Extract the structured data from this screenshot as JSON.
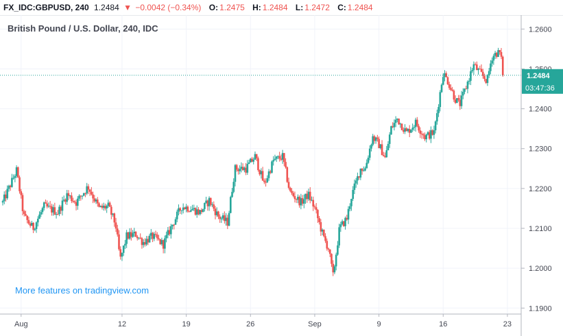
{
  "header": {
    "symbol": "FX_IDC:GBPUSD, 240",
    "last": "1.2484",
    "change": "−0.0042 (−0.34%)",
    "open_label": "O:",
    "open": "1.2475",
    "high_label": "H:",
    "high": "1.2484",
    "low_label": "L:",
    "low": "1.2472",
    "close_label": "C:",
    "close": "1.2484",
    "change_arrow": "triangle-down-icon"
  },
  "subtitle": "British Pound / U.S. Dollar, 240, IDC",
  "promo": "More features on tradingview.com",
  "price_tag": {
    "price": "1.2484",
    "countdown": "03:47:36"
  },
  "colors": {
    "up": "#26a69a",
    "down": "#ef5350",
    "grid": "#f0f3fa",
    "axis_text": "#434651",
    "price_line": "#26a69a",
    "promo": "#2196f3"
  },
  "chart_data": {
    "type": "candlestick",
    "title": "British Pound / U.S. Dollar, 240, IDC",
    "ylim": [
      1.1885,
      1.2635
    ],
    "y_ticks": [
      "1.2600",
      "1.2500",
      "1.2400",
      "1.2300",
      "1.2200",
      "1.2100",
      "1.2000",
      "1.1900"
    ],
    "x_ticks": [
      "Aug",
      "12",
      "19",
      "26",
      "Sep",
      "9",
      "16",
      "23"
    ],
    "x_tick_days": [
      1,
      12,
      19,
      26,
      33,
      40,
      47,
      54
    ],
    "x_range_days": [
      -1.3,
      55.5
    ],
    "current_price": 1.2484,
    "grid": true,
    "legend": "none",
    "anchors": [
      [
        -1.0,
        1.2165
      ],
      [
        0.5,
        1.2245
      ],
      [
        1.3,
        1.213
      ],
      [
        2.3,
        1.21
      ],
      [
        3.5,
        1.2155
      ],
      [
        5.0,
        1.214
      ],
      [
        6.0,
        1.2185
      ],
      [
        7.0,
        1.2165
      ],
      [
        8.3,
        1.2205
      ],
      [
        9.5,
        1.215
      ],
      [
        10.5,
        1.2155
      ],
      [
        11.3,
        1.211
      ],
      [
        11.8,
        1.202
      ],
      [
        12.5,
        1.208
      ],
      [
        13.5,
        1.2085
      ],
      [
        14.3,
        1.2065
      ],
      [
        15.3,
        1.208
      ],
      [
        16.5,
        1.206
      ],
      [
        17.5,
        1.211
      ],
      [
        18.5,
        1.2155
      ],
      [
        19.5,
        1.215
      ],
      [
        20.5,
        1.214
      ],
      [
        21.5,
        1.217
      ],
      [
        22.5,
        1.213
      ],
      [
        23.5,
        1.2115
      ],
      [
        24.3,
        1.225
      ],
      [
        25.5,
        1.225
      ],
      [
        26.5,
        1.228
      ],
      [
        27.5,
        1.221
      ],
      [
        28.5,
        1.227
      ],
      [
        29.5,
        1.228
      ],
      [
        30.3,
        1.219
      ],
      [
        31.5,
        1.2165
      ],
      [
        32.3,
        1.2185
      ],
      [
        33.0,
        1.215
      ],
      [
        34.0,
        1.2075
      ],
      [
        34.5,
        1.205
      ],
      [
        35.0,
        1.198
      ],
      [
        35.7,
        1.21
      ],
      [
        36.5,
        1.2125
      ],
      [
        37.0,
        1.218
      ],
      [
        38.0,
        1.225
      ],
      [
        38.5,
        1.225
      ],
      [
        39.3,
        1.233
      ],
      [
        40.0,
        1.231
      ],
      [
        40.7,
        1.2275
      ],
      [
        41.3,
        1.235
      ],
      [
        42.0,
        1.2375
      ],
      [
        43.0,
        1.234
      ],
      [
        44.0,
        1.2365
      ],
      [
        45.0,
        1.233
      ],
      [
        46.0,
        1.234
      ],
      [
        47.0,
        1.249
      ],
      [
        47.5,
        1.247
      ],
      [
        48.3,
        1.2425
      ],
      [
        48.8,
        1.241
      ],
      [
        49.5,
        1.2455
      ],
      [
        50.3,
        1.251
      ],
      [
        51.0,
        1.249
      ],
      [
        51.8,
        1.247
      ],
      [
        52.3,
        1.253
      ],
      [
        52.8,
        1.254
      ],
      [
        53.2,
        1.254
      ],
      [
        53.6,
        1.2484
      ]
    ]
  }
}
